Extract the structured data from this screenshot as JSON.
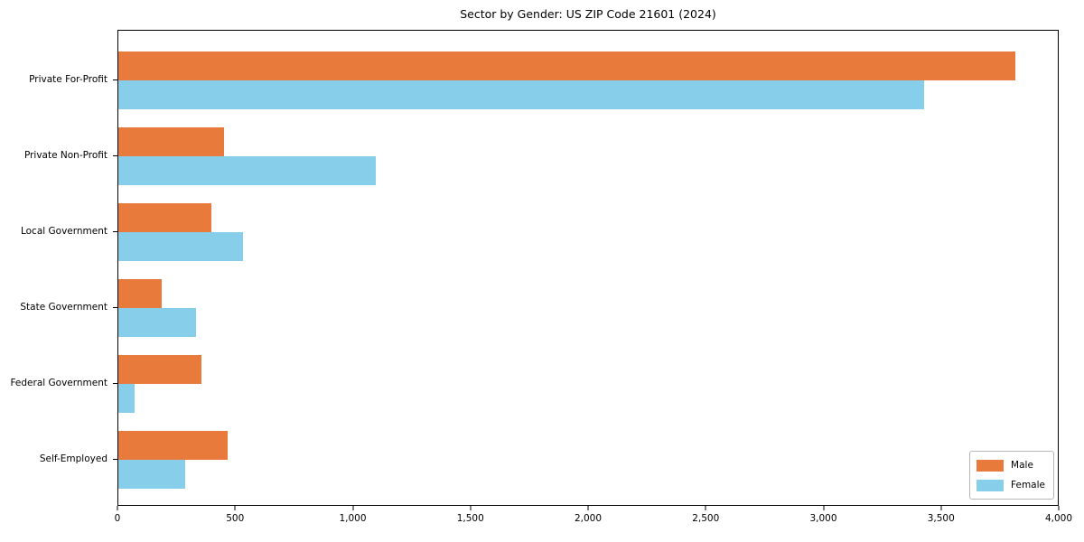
{
  "title": "Sector by Gender: US ZIP Code 21601 (2024)",
  "chart_data": {
    "type": "bar",
    "orientation": "horizontal",
    "title": "Sector by Gender: US ZIP Code 21601 (2024)",
    "xlabel": "",
    "ylabel": "",
    "categories": [
      "Private For-Profit",
      "Private Non-Profit",
      "Local Government",
      "State Government",
      "Federal Government",
      "Self-Employed"
    ],
    "series": [
      {
        "name": "Male",
        "color": "#e87b3c",
        "values": [
          3820,
          450,
          395,
          185,
          355,
          465
        ]
      },
      {
        "name": "Female",
        "color": "#87ceeb",
        "values": [
          3430,
          1095,
          530,
          330,
          70,
          285
        ]
      }
    ],
    "xlim": [
      0,
      4000
    ],
    "xticks": [
      0,
      500,
      1000,
      1500,
      2000,
      2500,
      3000,
      3500,
      4000
    ],
    "xtick_labels": [
      "0",
      "500",
      "1,000",
      "1,500",
      "2,000",
      "2,500",
      "3,000",
      "3,500",
      "4,000"
    ],
    "grid": false,
    "legend_position": "lower right",
    "legend_title": ""
  }
}
